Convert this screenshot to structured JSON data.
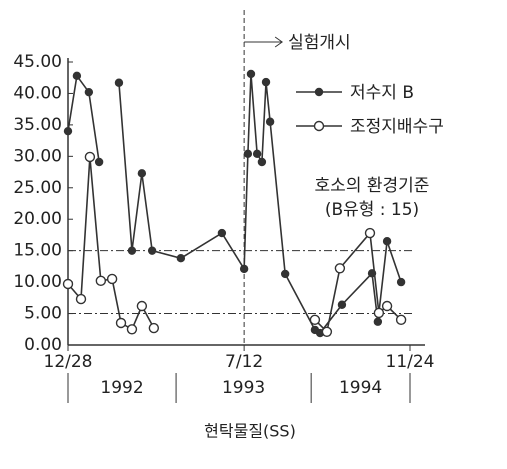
{
  "chart_data": {
    "type": "line",
    "title": "현탁물질(SS)",
    "xlim": [
      0,
      100
    ],
    "xticks": [
      {
        "value": 0,
        "label": "12/28"
      },
      {
        "value": 51.5,
        "label": "7/12"
      },
      {
        "value": 100,
        "label": "11/24"
      }
    ],
    "years": [
      "1992",
      "1993",
      "1994"
    ],
    "year_bounds": [
      0,
      31.6,
      71.1,
      100
    ],
    "ylim": [
      0,
      45
    ],
    "yticks": [
      {
        "value": 0,
        "label": "0.00"
      },
      {
        "value": 5,
        "label": "5.00"
      },
      {
        "value": 10,
        "label": "10.00"
      },
      {
        "value": 15,
        "label": "15.00"
      },
      {
        "value": 20,
        "label": "20.00"
      },
      {
        "value": 25,
        "label": "25.00"
      },
      {
        "value": 30,
        "label": "30.00"
      },
      {
        "value": 35,
        "label": "35.00"
      },
      {
        "value": 40,
        "label": "40.00"
      },
      {
        "value": 45,
        "label": "45.00"
      }
    ],
    "reference_lines": [
      15,
      5
    ],
    "start_annotation": "실험개시",
    "standard_annotation": [
      "호소의 환경기준",
      "(B유형 : 15)"
    ],
    "legend": "upper right",
    "series": [
      {
        "name": "저수지 B",
        "color": "#333333",
        "marker": "filled",
        "x": [
          0,
          2.6,
          6.1,
          9.1,
          null,
          14.9,
          18.7,
          21.6,
          24.6,
          33.0,
          45.0,
          51.5,
          52.6,
          53.5,
          55.3,
          56.7,
          57.9,
          59.1,
          63.5,
          72.2,
          73.7,
          80.1,
          88.9,
          90.6,
          93.3,
          97.4
        ],
        "values": [
          34.0,
          42.8,
          40.2,
          29.1,
          null,
          41.7,
          15.0,
          27.3,
          15.0,
          13.8,
          17.8,
          12.1,
          30.4,
          43.1,
          30.4,
          29.1,
          41.8,
          35.5,
          11.3,
          2.4,
          1.9,
          6.4,
          11.4,
          3.7,
          16.5,
          10.0
        ]
      },
      {
        "name": "조정지배수구",
        "color": "#333333",
        "marker": "open",
        "x": [
          0,
          3.8,
          6.4,
          9.6,
          12.9,
          15.5,
          18.7,
          21.6,
          25.1,
          null,
          72.2,
          75.7,
          79.5,
          88.3,
          90.9,
          93.3,
          97.4
        ],
        "values": [
          9.7,
          7.3,
          29.9,
          10.2,
          10.5,
          3.5,
          2.5,
          6.2,
          2.7,
          null,
          4.0,
          2.1,
          12.2,
          17.8,
          5.1,
          6.2,
          4.0
        ]
      }
    ]
  }
}
